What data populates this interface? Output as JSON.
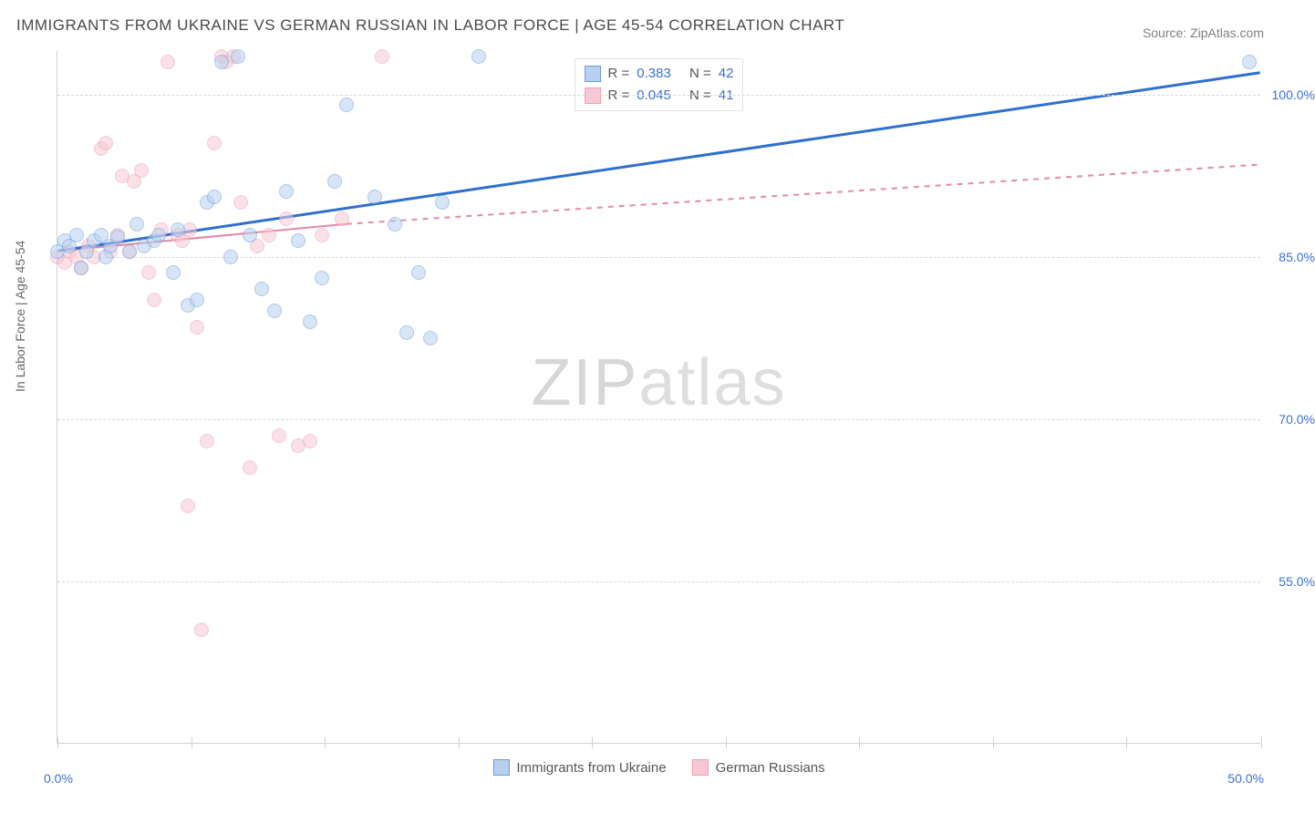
{
  "title": "IMMIGRANTS FROM UKRAINE VS GERMAN RUSSIAN IN LABOR FORCE | AGE 45-54 CORRELATION CHART",
  "source_label": "Source: ZipAtlas.com",
  "ylabel": "In Labor Force | Age 45-54",
  "watermark_bold": "ZIP",
  "watermark_thin": "atlas",
  "xaxis": {
    "min": 0.0,
    "max": 50.0,
    "ticks_pct": [
      0,
      11.1,
      22.2,
      33.3,
      44.4,
      55.5,
      66.6,
      77.7,
      88.8,
      100
    ],
    "label_left": "0.0%",
    "label_right": "50.0%"
  },
  "yaxis": {
    "min": 40.0,
    "max": 104.0,
    "gridlines": [
      55.0,
      70.0,
      85.0,
      100.0
    ],
    "labels": [
      "55.0%",
      "70.0%",
      "85.0%",
      "100.0%"
    ]
  },
  "series": [
    {
      "name": "Immigrants from Ukraine",
      "color_fill": "#b8d0ef",
      "color_stroke": "#6a9de0",
      "line_color": "#2f6fd0",
      "line_width": 3,
      "marker_radius": 8,
      "fill_opacity": 0.55,
      "R": "0.383",
      "N": "42",
      "trend": {
        "x1": 0.0,
        "y1": 85.5,
        "x2": 50.0,
        "y2": 102.0,
        "dash": false
      },
      "points": [
        [
          0.0,
          85.5
        ],
        [
          0.3,
          86.5
        ],
        [
          0.5,
          86.0
        ],
        [
          0.8,
          87.0
        ],
        [
          1.0,
          84.0
        ],
        [
          1.2,
          85.5
        ],
        [
          1.5,
          86.5
        ],
        [
          1.8,
          87.0
        ],
        [
          2.0,
          85.0
        ],
        [
          2.2,
          86.0
        ],
        [
          2.5,
          86.8
        ],
        [
          3.0,
          85.5
        ],
        [
          3.3,
          88.0
        ],
        [
          3.6,
          86.0
        ],
        [
          4.0,
          86.5
        ],
        [
          4.2,
          87.0
        ],
        [
          4.8,
          83.5
        ],
        [
          5.0,
          87.5
        ],
        [
          5.4,
          80.5
        ],
        [
          5.8,
          81.0
        ],
        [
          6.2,
          90.0
        ],
        [
          6.5,
          90.5
        ],
        [
          6.8,
          103.0
        ],
        [
          7.2,
          85.0
        ],
        [
          7.5,
          103.5
        ],
        [
          8.0,
          87.0
        ],
        [
          8.5,
          82.0
        ],
        [
          9.0,
          80.0
        ],
        [
          9.5,
          91.0
        ],
        [
          10.0,
          86.5
        ],
        [
          10.5,
          79.0
        ],
        [
          11.0,
          83.0
        ],
        [
          11.5,
          92.0
        ],
        [
          12.0,
          99.0
        ],
        [
          13.2,
          90.5
        ],
        [
          14.0,
          88.0
        ],
        [
          14.5,
          78.0
        ],
        [
          15.0,
          83.5
        ],
        [
          15.5,
          77.5
        ],
        [
          16.0,
          90.0
        ],
        [
          17.5,
          103.5
        ],
        [
          49.5,
          103.0
        ]
      ]
    },
    {
      "name": "German Russians",
      "color_fill": "#f6c8d4",
      "color_stroke": "#eda0b6",
      "line_color": "#e58aa4",
      "line_width": 2,
      "marker_radius": 8,
      "fill_opacity": 0.55,
      "R": "0.045",
      "N": "41",
      "trend_solid": {
        "x1": 0.0,
        "y1": 85.5,
        "x2": 12.0,
        "y2": 88.0
      },
      "trend_dash": {
        "x1": 12.0,
        "y1": 88.0,
        "x2": 50.0,
        "y2": 93.5
      },
      "points": [
        [
          0.0,
          85.0
        ],
        [
          0.3,
          84.5
        ],
        [
          0.5,
          85.5
        ],
        [
          0.8,
          85.0
        ],
        [
          1.0,
          84.0
        ],
        [
          1.3,
          86.0
        ],
        [
          1.5,
          85.0
        ],
        [
          1.8,
          95.0
        ],
        [
          2.0,
          95.5
        ],
        [
          2.2,
          85.5
        ],
        [
          2.5,
          87.0
        ],
        [
          2.7,
          92.5
        ],
        [
          3.0,
          85.5
        ],
        [
          3.2,
          92.0
        ],
        [
          3.5,
          93.0
        ],
        [
          3.8,
          83.5
        ],
        [
          4.0,
          81.0
        ],
        [
          4.3,
          87.5
        ],
        [
          4.6,
          103.0
        ],
        [
          5.0,
          87.0
        ],
        [
          5.2,
          86.5
        ],
        [
          5.5,
          87.5
        ],
        [
          5.8,
          78.5
        ],
        [
          6.2,
          68.0
        ],
        [
          6.5,
          95.5
        ],
        [
          6.8,
          103.5
        ],
        [
          7.0,
          103.0
        ],
        [
          7.3,
          103.5
        ],
        [
          7.6,
          90.0
        ],
        [
          8.0,
          65.5
        ],
        [
          8.3,
          86.0
        ],
        [
          8.8,
          87.0
        ],
        [
          9.2,
          68.5
        ],
        [
          9.5,
          88.5
        ],
        [
          10.0,
          67.5
        ],
        [
          10.5,
          68.0
        ],
        [
          11.0,
          87.0
        ],
        [
          11.8,
          88.5
        ],
        [
          13.5,
          103.5
        ],
        [
          5.4,
          62.0
        ],
        [
          6.0,
          50.5
        ]
      ]
    }
  ],
  "legend_top": {
    "R_label": "R  =",
    "N_label": "N  =",
    "number_color": "#3b6fd6"
  },
  "legend_bottom_items": [
    "Immigrants from Ukraine",
    "German Russians"
  ]
}
